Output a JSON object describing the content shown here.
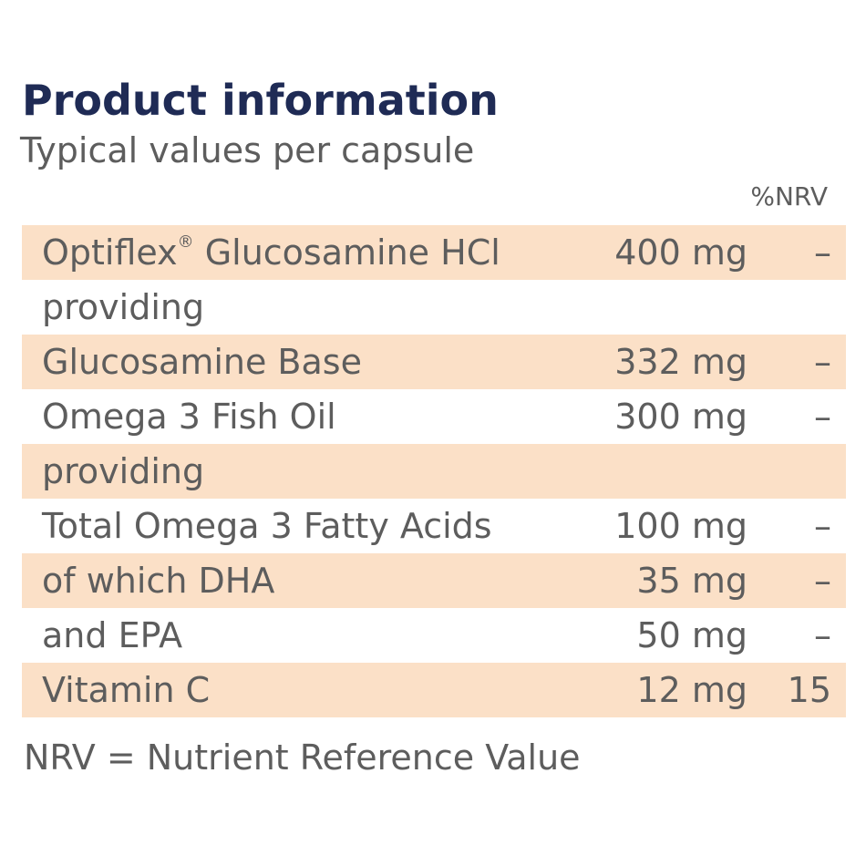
{
  "title": "Product information",
  "subtitle": "Typical values per capsule",
  "nrv_header": "%NRV",
  "rows": [
    {
      "name": "Optiflex",
      "mark": "®",
      "name_rest": " Glucosamine HCl",
      "amount": "400 mg",
      "nrv": "–",
      "shaded": true
    },
    {
      "name": "providing",
      "amount": "",
      "nrv": "",
      "shaded": false
    },
    {
      "name": "Glucosamine Base",
      "amount": "332 mg",
      "nrv": "–",
      "shaded": true
    },
    {
      "name": "Omega 3 Fish Oil",
      "amount": "300 mg",
      "nrv": "–",
      "shaded": false
    },
    {
      "name": "providing",
      "amount": "",
      "nrv": "",
      "shaded": true
    },
    {
      "name": "Total Omega 3 Fatty Acids",
      "amount": "100 mg",
      "nrv": "–",
      "shaded": false
    },
    {
      "name": "of which DHA",
      "amount": "35 mg",
      "nrv": "–",
      "shaded": true
    },
    {
      "name": "and EPA",
      "amount": "50 mg",
      "nrv": "–",
      "shaded": false
    },
    {
      "name": "Vitamin C",
      "amount": "12 mg",
      "nrv": "15",
      "shaded": true
    }
  ],
  "footnote": "NRV = Nutrient Reference Value",
  "colors": {
    "title": "#1f2b55",
    "text": "#5d5d5d",
    "row_shade": "#fbe0c7"
  }
}
